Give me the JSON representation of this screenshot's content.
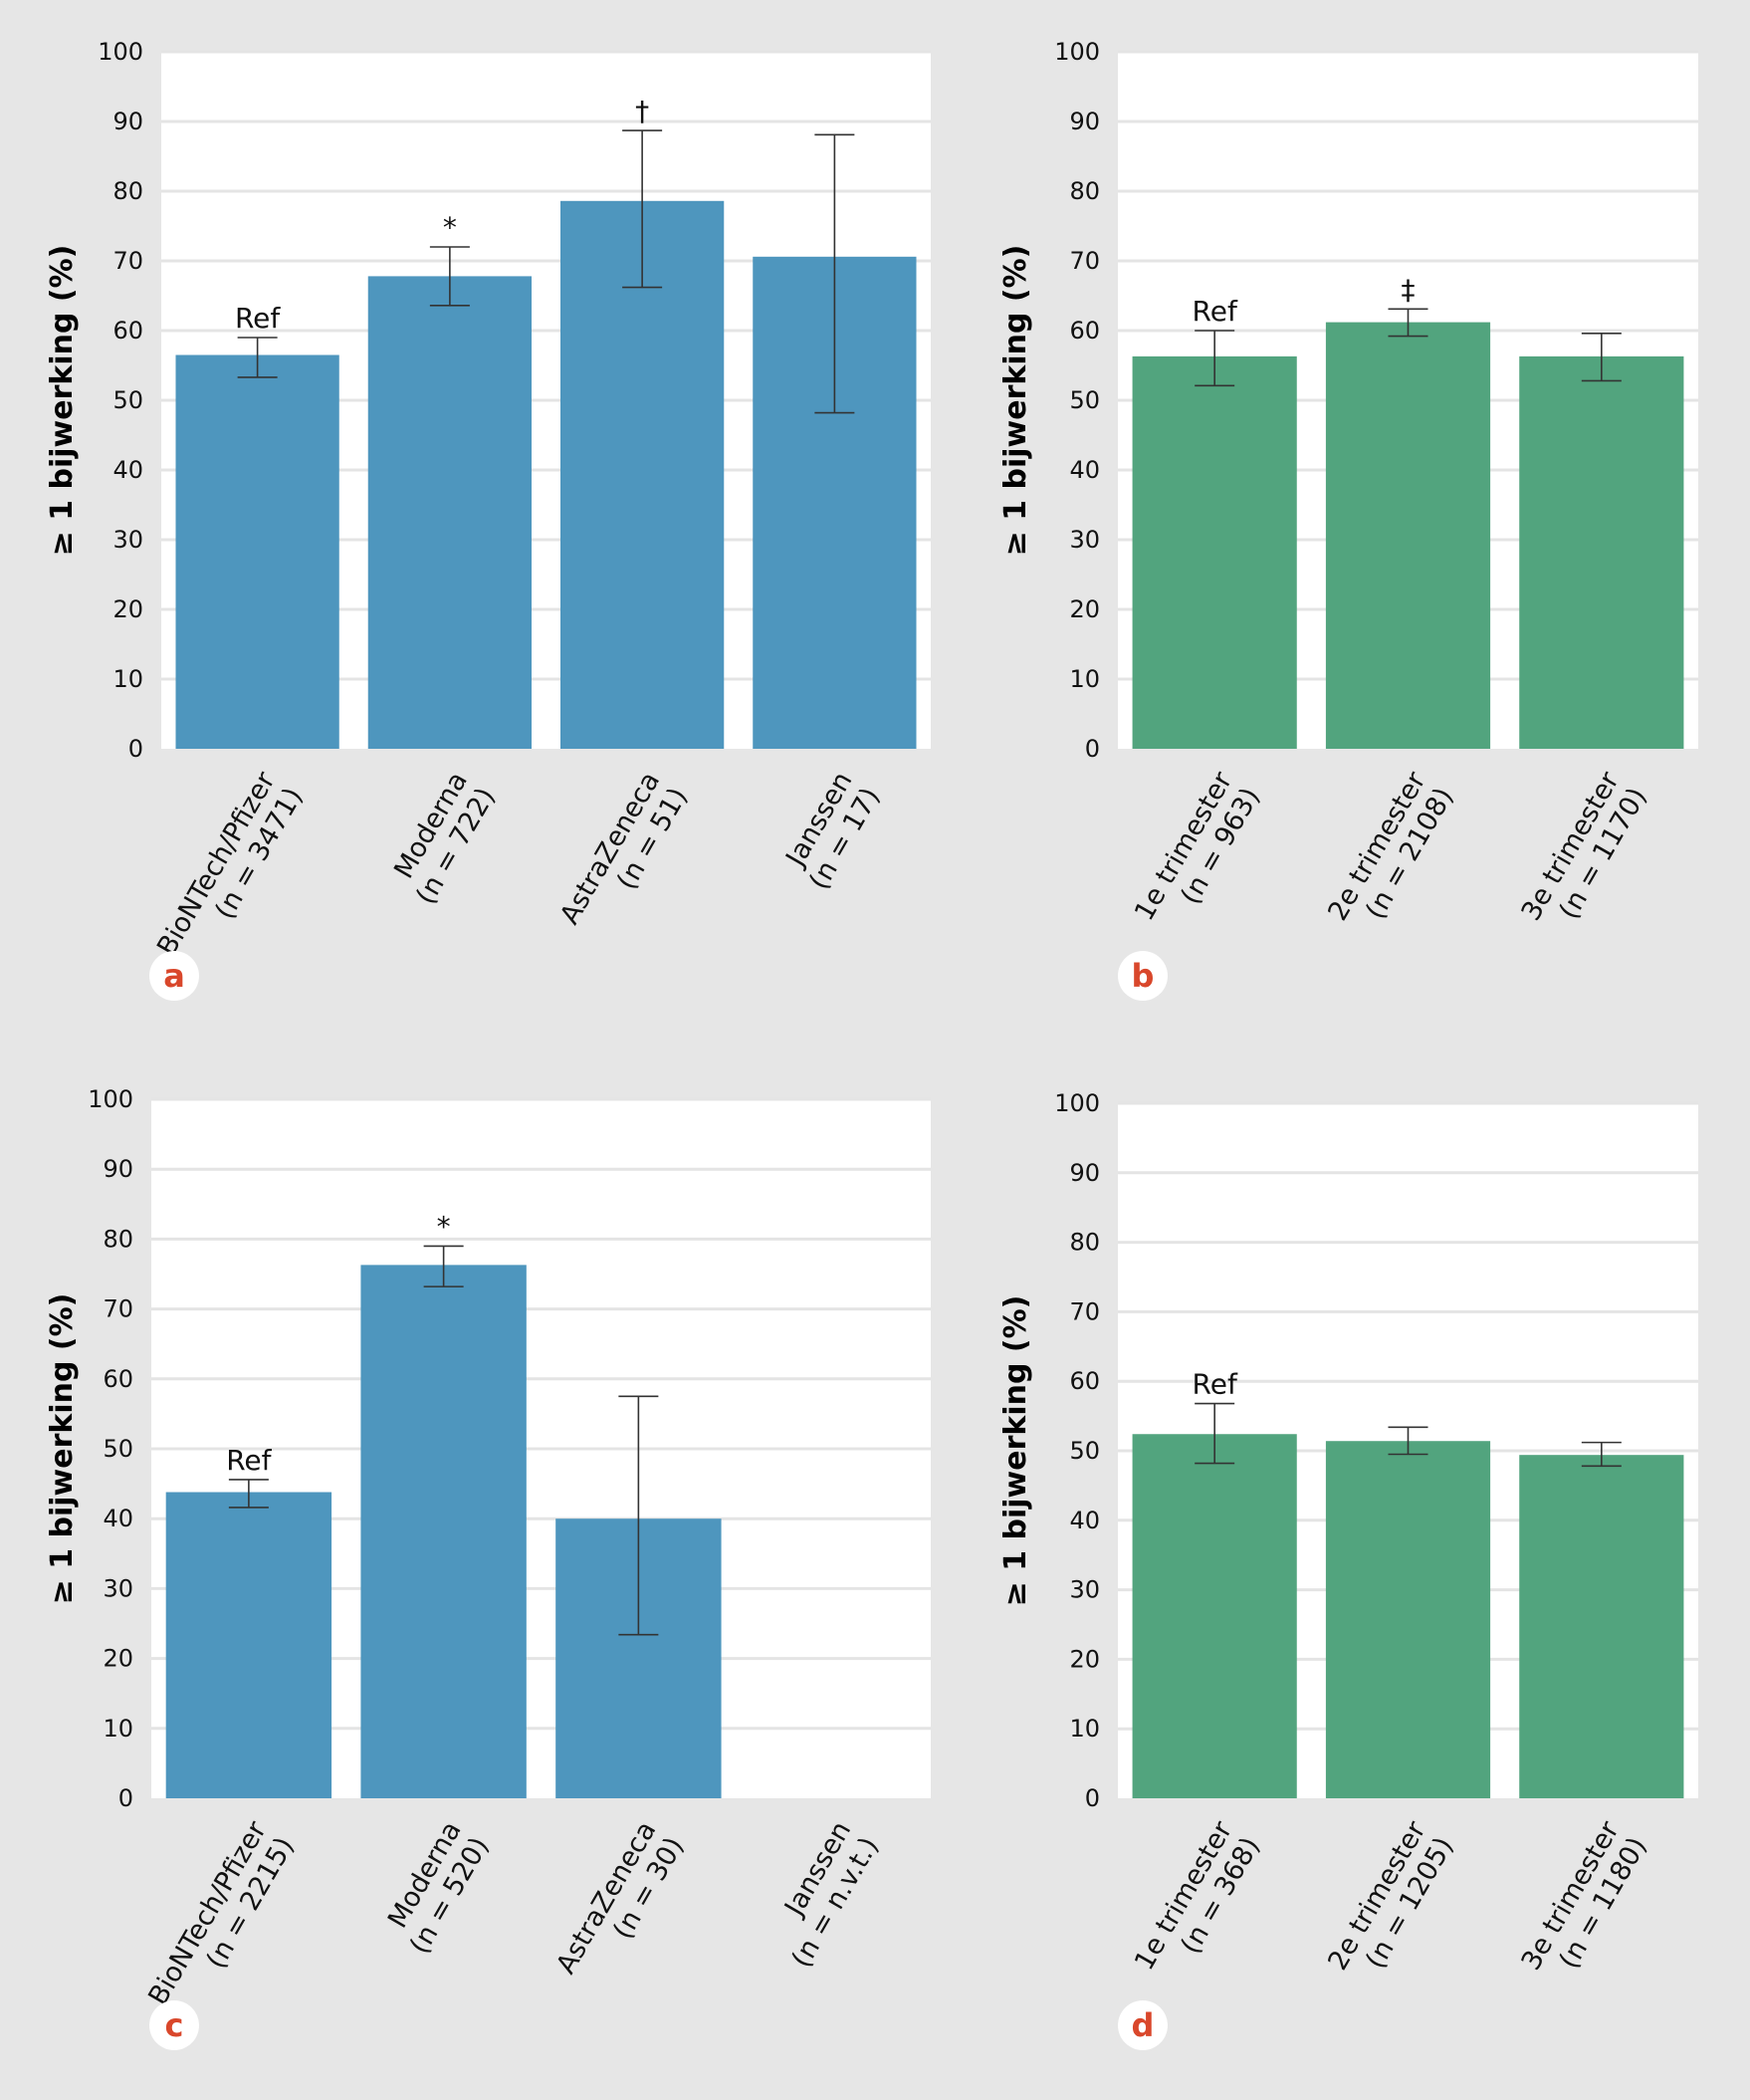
{
  "colors": {
    "page_background": "#e6e6e6",
    "plot_background": "#ffffff",
    "gridline": "#e4e4e4",
    "blue_bar": "#4e96be",
    "green_bar": "#52a47e",
    "error_bar": "#333333",
    "panel_letter": "#d9472b"
  },
  "chart_data": [
    {
      "panel": "a",
      "type": "bar",
      "ylabel": "≥ 1 bijwerking (%)",
      "ylim": [
        0,
        100
      ],
      "yticks": [
        "0",
        "10",
        "20",
        "30",
        "40",
        "50",
        "60",
        "70",
        "80",
        "90",
        "100"
      ],
      "grid": true,
      "bar_color": "blue",
      "categories": [
        {
          "label": "BioNTech/Pfizer",
          "n": "(n = 3471)",
          "value": 56.5,
          "ci_low": 53.3,
          "ci_high": 59.0,
          "annotation": "Ref"
        },
        {
          "label": "Moderna",
          "n": "(n = 722)",
          "value": 67.8,
          "ci_low": 63.6,
          "ci_high": 72.0,
          "annotation": "*"
        },
        {
          "label": "AstraZeneca",
          "n": "(n = 51)",
          "value": 78.6,
          "ci_low": 66.2,
          "ci_high": 88.7,
          "annotation": "†"
        },
        {
          "label": "Janssen",
          "n": "(n = 17)",
          "value": 70.6,
          "ci_low": 48.2,
          "ci_high": 88.1,
          "annotation": ""
        }
      ]
    },
    {
      "panel": "b",
      "type": "bar",
      "ylabel": "≥ 1 bijwerking (%)",
      "ylim": [
        0,
        100
      ],
      "yticks": [
        "0",
        "10",
        "20",
        "30",
        "40",
        "50",
        "60",
        "70",
        "80",
        "90",
        "100"
      ],
      "grid": true,
      "bar_color": "green",
      "categories": [
        {
          "label": "1e trimester",
          "n": "(n = 963)",
          "value": 56.3,
          "ci_low": 52.1,
          "ci_high": 60.0,
          "annotation": "Ref"
        },
        {
          "label": "2e trimester",
          "n": "(n = 2108)",
          "value": 61.2,
          "ci_low": 59.2,
          "ci_high": 63.1,
          "annotation": "‡"
        },
        {
          "label": "3e trimester",
          "n": "(n = 1170)",
          "value": 56.3,
          "ci_low": 52.8,
          "ci_high": 59.6,
          "annotation": ""
        }
      ]
    },
    {
      "panel": "c",
      "type": "bar",
      "ylabel": "≥ 1 bijwerking (%)",
      "ylim": [
        0,
        100
      ],
      "yticks": [
        "0",
        "10",
        "20",
        "30",
        "40",
        "50",
        "60",
        "70",
        "80",
        "90",
        "100"
      ],
      "grid": true,
      "bar_color": "blue",
      "categories": [
        {
          "label": "BioNTech/Pfizer",
          "n": "(n = 2215)",
          "value": 43.8,
          "ci_low": 41.6,
          "ci_high": 45.6,
          "annotation": "Ref"
        },
        {
          "label": "Moderna",
          "n": "(n = 520)",
          "value": 76.3,
          "ci_low": 73.2,
          "ci_high": 79.0,
          "annotation": "*"
        },
        {
          "label": "AstraZeneca",
          "n": "(n = 30)",
          "value": 40.0,
          "ci_low": 23.4,
          "ci_high": 57.5,
          "annotation": ""
        },
        {
          "label": "Janssen",
          "n": "(n = n.v.t.)",
          "value": null,
          "ci_low": null,
          "ci_high": null,
          "annotation": ""
        }
      ]
    },
    {
      "panel": "d",
      "type": "bar",
      "ylabel": "≥ 1 bijwerking (%)",
      "ylim": [
        0,
        100
      ],
      "yticks": [
        "0",
        "10",
        "20",
        "30",
        "40",
        "50",
        "60",
        "70",
        "80",
        "90",
        "100"
      ],
      "grid": true,
      "bar_color": "green",
      "categories": [
        {
          "label": "1e trimester",
          "n": "(n = 368)",
          "value": 52.4,
          "ci_low": 48.2,
          "ci_high": 56.8,
          "annotation": "Ref"
        },
        {
          "label": "2e trimester",
          "n": "(n = 1205)",
          "value": 51.4,
          "ci_low": 49.5,
          "ci_high": 53.4,
          "annotation": ""
        },
        {
          "label": "3e trimester",
          "n": "(n = 1180)",
          "value": 49.4,
          "ci_low": 47.8,
          "ci_high": 51.2,
          "annotation": ""
        }
      ]
    }
  ]
}
